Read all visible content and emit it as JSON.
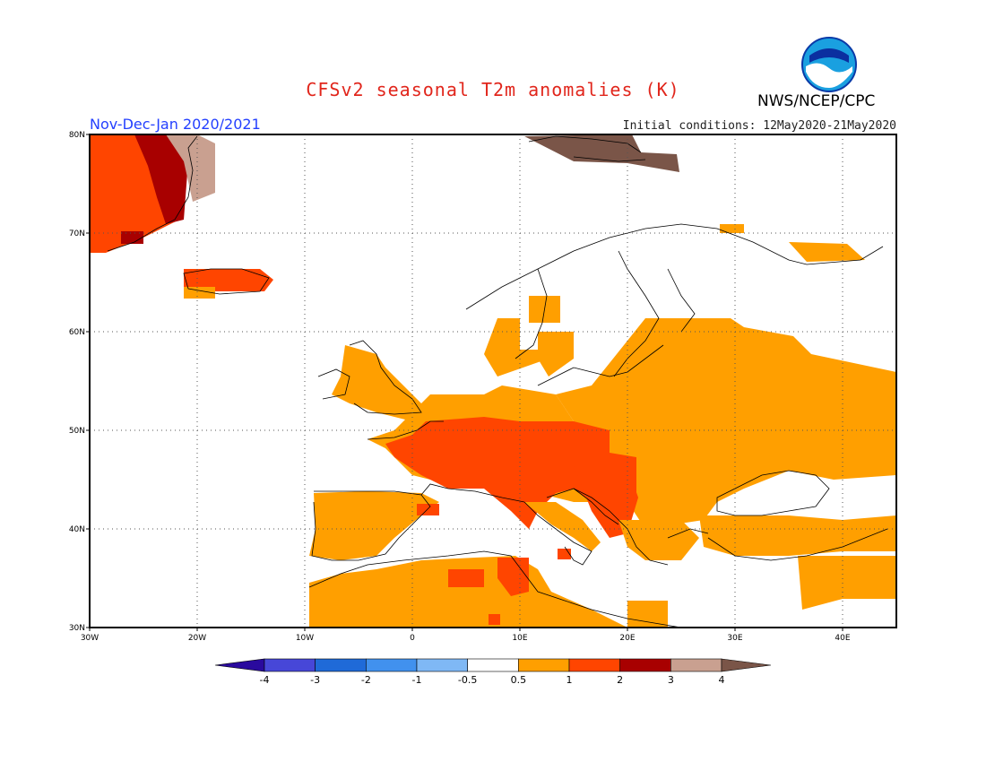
{
  "header": {
    "title": "CFSv2 seasonal T2m anomalies (K)",
    "agency": "NWS/NCEP/CPC",
    "season": "Nov-Dec-Jan 2020/2021",
    "initial_conditions": "Initial conditions: 12May2020-21May2020",
    "logo_text": "NOAA"
  },
  "map": {
    "lon_range": [
      -30,
      45
    ],
    "lat_range": [
      30,
      80
    ],
    "lon_ticks": [
      "30W",
      "20W",
      "10W",
      "0",
      "10E",
      "20E",
      "30E",
      "40E"
    ],
    "lat_ticks": [
      "30N",
      "40N",
      "50N",
      "60N",
      "70N",
      "80N"
    ],
    "gridlines": "dotted"
  },
  "colorbar": {
    "labels": [
      "-4",
      "-3",
      "-2",
      "-1",
      "-0.5",
      "0.5",
      "1",
      "2",
      "3",
      "4"
    ],
    "colors": [
      "#2a0a9e",
      "#4747d8",
      "#1f6ad8",
      "#4191ee",
      "#7fb8f5",
      "#ffffff",
      "#ff9f00",
      "#ff4500",
      "#a80000",
      "#c9a090",
      "#7a5548"
    ]
  },
  "colors": {
    "title": "#e1261c",
    "season": "#2440ff",
    "anom_0.5_1": "#ff9f00",
    "anom_1_2": "#ff4500",
    "anom_2_3": "#a80000",
    "anom_3_4": "#c9a090",
    "anom_gt4": "#7a5548"
  }
}
